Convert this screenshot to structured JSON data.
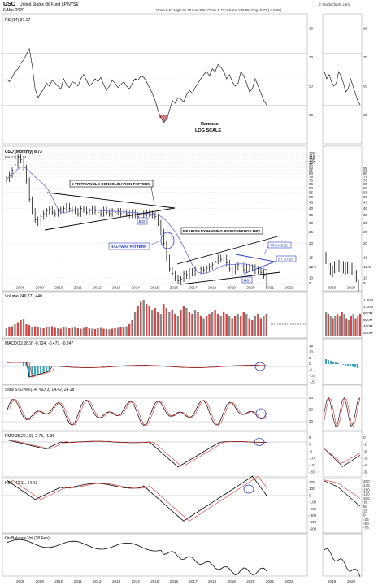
{
  "header": {
    "symbol": "USO",
    "name": "United States Oil Fund LP NYSE",
    "date": "6-Mar-2020",
    "ohlc": "Open 9.67  High 10.18  Low 8.50  Close 8.73  Volume 246.8M  Chg -0.72 (-7.62%)",
    "brand": "© StockCharts.com"
  },
  "rsi": {
    "title": "RSI(14) 37.17",
    "levels": [
      30,
      50,
      70,
      90
    ],
    "rambus": "Rambus",
    "scale": "LOG SCALE",
    "values": [
      55,
      53,
      56,
      60,
      62,
      66,
      68,
      72,
      76,
      64,
      48,
      42,
      45,
      48,
      52,
      50,
      54,
      52,
      50,
      48,
      55,
      51,
      49,
      53,
      52,
      50,
      55,
      58,
      54,
      50,
      52,
      55,
      53,
      56,
      51,
      47,
      50,
      54,
      52,
      49,
      51,
      53,
      50,
      48,
      52,
      55,
      54,
      57,
      56,
      53,
      49,
      45,
      40,
      33,
      28,
      25,
      27,
      33,
      40,
      38,
      42,
      41,
      39,
      44,
      47,
      45,
      49,
      52,
      55,
      58,
      60,
      57,
      62,
      60,
      65,
      63,
      60,
      55,
      58,
      53,
      50,
      52,
      60,
      57,
      52,
      46,
      48,
      55,
      50,
      45,
      40,
      37
    ]
  },
  "price": {
    "title": "USO (Monthly) 8.73",
    "ma_label": "MA(12) 11.34",
    "y_ticks": [
      9,
      10,
      12.5,
      15,
      20,
      25,
      30,
      35,
      40,
      45,
      50,
      55,
      60,
      65,
      70,
      75,
      80,
      85,
      90,
      95,
      100,
      105,
      110,
      115,
      120
    ],
    "y_ticks_right": [
      9,
      10,
      12.5,
      15,
      20,
      25,
      30,
      35,
      40,
      45,
      50,
      55,
      60,
      65,
      70,
      75,
      80,
      85,
      90
    ],
    "closes": [
      72,
      78,
      85,
      95,
      110,
      105,
      90,
      70,
      48,
      38,
      32,
      30,
      34,
      36,
      38,
      40,
      37,
      36,
      38,
      39,
      40,
      42,
      40,
      39,
      38,
      36,
      40,
      39,
      37,
      38,
      40,
      38,
      37,
      36,
      39,
      37,
      36,
      38,
      37,
      38,
      36,
      37,
      36,
      35,
      37,
      35,
      34,
      35,
      36,
      37,
      36,
      35,
      34,
      30,
      25,
      20,
      15,
      12,
      11,
      10,
      9.5,
      9.8,
      11,
      10.5,
      11.5,
      11,
      12,
      11.5,
      12,
      11.8,
      12.2,
      12.6,
      13,
      14,
      15,
      14.5,
      15,
      13.5,
      12,
      11.5,
      12.5,
      13,
      12.8,
      11.8,
      12.5,
      12.2,
      12.4,
      11.5,
      12,
      11.2,
      10.5,
      8.73
    ],
    "x_labels": [
      "2008",
      "2009",
      "2010",
      "2011",
      "2012",
      "2013",
      "2014",
      "2015",
      "2016",
      "2017",
      "2018",
      "2019",
      "2020",
      "2021",
      "2022"
    ],
    "x_labels_small": [
      "2019",
      "2020"
    ],
    "annotations": {
      "triangle": "5 YR TRIANGLE CONSOLIDATION PATTERN",
      "bo1": "BO",
      "halfway": "HALFWAY PATTERN",
      "wedge": "BEARISH EXPANDING RISING WEDGE HP?",
      "triangle2": "TRIANGLE",
      "bt": "BT 10.18",
      "bo2": "BO"
    }
  },
  "volume": {
    "title": "Volume 246,771,440",
    "ticks": [
      "1.60B",
      "1.00B",
      "800M",
      "600M",
      "400M",
      "200M"
    ],
    "values": [
      40,
      45,
      50,
      60,
      70,
      80,
      85,
      60,
      55,
      48,
      50,
      45,
      42,
      40,
      45,
      48,
      50,
      42,
      40,
      38,
      45,
      43,
      40,
      42,
      44,
      40,
      38,
      42,
      45,
      40,
      38,
      36,
      40,
      42,
      38,
      36,
      35,
      38,
      40,
      42,
      45,
      48,
      50,
      60,
      80,
      120,
      150,
      170,
      180,
      160,
      150,
      130,
      140,
      120,
      110,
      160,
      140,
      120,
      130,
      110,
      100,
      130,
      150,
      140,
      120,
      110,
      130,
      120,
      100,
      90,
      100,
      110,
      120,
      130,
      110,
      100,
      120,
      110,
      100,
      90,
      100,
      110,
      100,
      120,
      110,
      90,
      80,
      100,
      110,
      90,
      100,
      110
    ]
  },
  "macd": {
    "title": "MACD(12,26,9) -0.724, -0.477, -0.247",
    "ticks": [
      "15",
      "10",
      "5",
      "0",
      "-5",
      "-10",
      "-15"
    ]
  },
  "slow_sto": {
    "title": "Slow STO %K(14) %D(3) 14.42, 24.18",
    "ticks": [
      "80",
      "50",
      "20"
    ]
  },
  "pmo": {
    "title": "PMO(35,20,10) -2.73, -1.36",
    "ticks": [
      "5",
      "0",
      "-5",
      "-10",
      "-15",
      "-20"
    ],
    "ticks_right": [
      "0",
      "-1",
      "-2",
      "-3",
      "-4",
      "-5"
    ]
  },
  "kst": {
    "title": "KST -42.11, 54.43",
    "ticks": [
      "200",
      "100",
      "0",
      "-100",
      "-200",
      "-300",
      "-400",
      "-500"
    ],
    "ticks_right": [
      "200",
      "175",
      "150",
      "125",
      "100",
      "75",
      "50",
      "25",
      "0",
      "-25",
      "-50",
      "-75"
    ]
  },
  "obv": {
    "title": "On Balance Vol (28 Feb)"
  },
  "colors": {
    "price_line": "#000000",
    "ma_line": "#6a6ad8",
    "up_bar": "#c94a4a",
    "blue": "#2a3fbf",
    "signal": "#e03030",
    "macd_hist": "#3ba6c4",
    "rsi_fill_low": "#c06060"
  }
}
